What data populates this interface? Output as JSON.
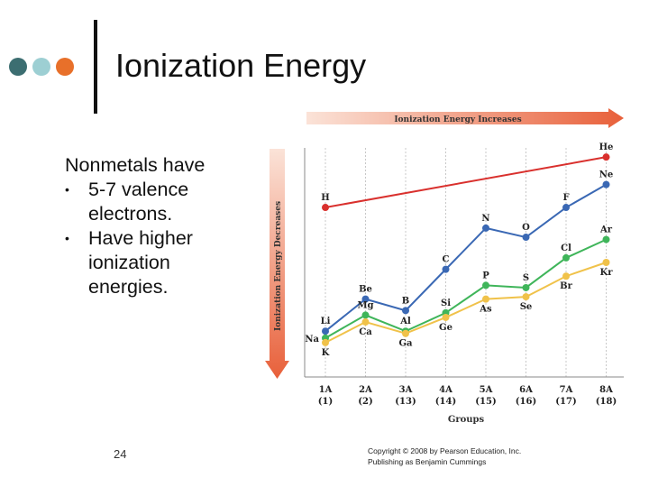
{
  "slide": {
    "title": "Ionization Energy",
    "intro": "Nonmetals have",
    "bullets": [
      "5-7 valence electrons.",
      "Have higher ionization energies."
    ],
    "page_number": "24",
    "copyright_line1": "Copyright © 2008 by Pearson Education, Inc.",
    "copyright_line2": "Publishing as Benjamin Cummings"
  },
  "decor": {
    "dot_colors": [
      "#3c6e71",
      "#9dcfd3",
      "#e8702a"
    ]
  },
  "chart_data": {
    "type": "line",
    "xlabel": "Groups",
    "horizontal_arrow_label": "Ionization Energy Increases",
    "vertical_arrow_label": "Ionization Energy Decreases",
    "categories": [
      {
        "group": "1A",
        "number": "(1)"
      },
      {
        "group": "2A",
        "number": "(2)"
      },
      {
        "group": "3A",
        "number": "(13)"
      },
      {
        "group": "4A",
        "number": "(14)"
      },
      {
        "group": "5A",
        "number": "(15)"
      },
      {
        "group": "6A",
        "number": "(16)"
      },
      {
        "group": "7A",
        "number": "(17)"
      },
      {
        "group": "8A",
        "number": "(18)"
      }
    ],
    "ylim": [
      0,
      100
    ],
    "grid": "vertical",
    "series": [
      {
        "color": "#d9302d",
        "points": [
          {
            "x": 0,
            "y": 74,
            "label": "H",
            "label_pos": "above"
          },
          {
            "x": 7,
            "y": 96,
            "label": "He",
            "label_pos": "above"
          }
        ]
      },
      {
        "color": "#3a68b4",
        "points": [
          {
            "x": 0,
            "y": 20,
            "label": "Li",
            "label_pos": "above"
          },
          {
            "x": 1,
            "y": 34,
            "label": "Be",
            "label_pos": "above"
          },
          {
            "x": 2,
            "y": 29,
            "label": "B",
            "label_pos": "above"
          },
          {
            "x": 3,
            "y": 47,
            "label": "C",
            "label_pos": "above"
          },
          {
            "x": 4,
            "y": 65,
            "label": "N",
            "label_pos": "above"
          },
          {
            "x": 5,
            "y": 61,
            "label": "O",
            "label_pos": "above"
          },
          {
            "x": 6,
            "y": 74,
            "label": "F",
            "label_pos": "above"
          },
          {
            "x": 7,
            "y": 84,
            "label": "Ne",
            "label_pos": "above"
          }
        ]
      },
      {
        "color": "#3fb55a",
        "points": [
          {
            "x": 0,
            "y": 17,
            "label": "Na",
            "label_pos": "left"
          },
          {
            "x": 1,
            "y": 27,
            "label": "Mg",
            "label_pos": "above"
          },
          {
            "x": 2,
            "y": 20,
            "label": "Al",
            "label_pos": "above"
          },
          {
            "x": 3,
            "y": 28,
            "label": "Si",
            "label_pos": "above"
          },
          {
            "x": 4,
            "y": 40,
            "label": "P",
            "label_pos": "above"
          },
          {
            "x": 5,
            "y": 39,
            "label": "S",
            "label_pos": "above"
          },
          {
            "x": 6,
            "y": 52,
            "label": "Cl",
            "label_pos": "above"
          },
          {
            "x": 7,
            "y": 60,
            "label": "Ar",
            "label_pos": "above"
          }
        ]
      },
      {
        "color": "#f0c24a",
        "points": [
          {
            "x": 0,
            "y": 15,
            "label": "K",
            "label_pos": "below"
          },
          {
            "x": 1,
            "y": 24,
            "label": "Ca",
            "label_pos": "below"
          },
          {
            "x": 2,
            "y": 19,
            "label": "Ga",
            "label_pos": "below"
          },
          {
            "x": 3,
            "y": 26,
            "label": "Ge",
            "label_pos": "below"
          },
          {
            "x": 4,
            "y": 34,
            "label": "As",
            "label_pos": "below"
          },
          {
            "x": 5,
            "y": 35,
            "label": "Se",
            "label_pos": "below"
          },
          {
            "x": 6,
            "y": 44,
            "label": "Br",
            "label_pos": "below"
          },
          {
            "x": 7,
            "y": 50,
            "label": "Kr",
            "label_pos": "below"
          }
        ]
      }
    ]
  }
}
